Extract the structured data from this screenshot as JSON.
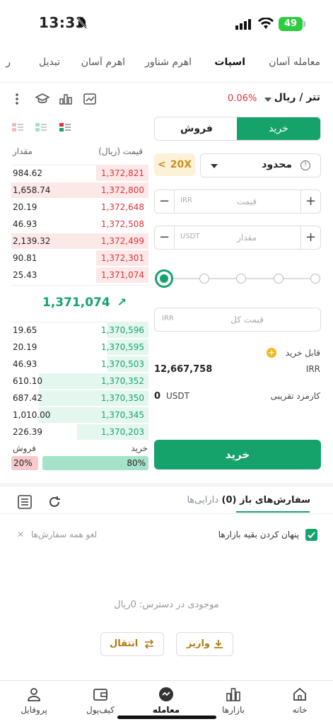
{
  "status": {
    "time": "13:33",
    "battery": "49"
  },
  "tabs": [
    "معامله آسان",
    "اسپات",
    "اهرم شناور",
    "اهرم آسان",
    "تبدیل",
    "ر"
  ],
  "pair": {
    "title": "تتر / ریال",
    "change": "0.06%"
  },
  "form": {
    "buy_label": "خرید",
    "sell_label": "فروش",
    "order_type": "محدود",
    "info_glyph": "!",
    "leverage": "20X",
    "leverage_arrow": "<",
    "price_placeholder": "قیمت",
    "price_unit": "IRR",
    "amount_placeholder": "مقدار",
    "amount_unit": "USDT",
    "plus": "+",
    "minus": "−",
    "total_placeholder": "قیمت کل",
    "total_unit": "IRR",
    "available_label": "قابل خرید",
    "add_glyph": "+",
    "available_value": "12,667,758",
    "available_unit": "IRR",
    "fee_label": "کارمزد تقریبی",
    "fee_value": "0",
    "fee_unit": "USDT",
    "submit_label": "خرید"
  },
  "orderbook": {
    "col_price": "قیمت (ریال)",
    "col_amount": "مقدار",
    "asks": [
      {
        "price": "1,372,821",
        "amount": "984.62",
        "depth": 0.38
      },
      {
        "price": "1,372,800",
        "amount": "1,658.74",
        "depth": 1.0
      },
      {
        "price": "1,372,648",
        "amount": "20.19",
        "depth": 0.0
      },
      {
        "price": "1,372,508",
        "amount": "46.93",
        "depth": 0.0
      },
      {
        "price": "1,372,499",
        "amount": "2,139.32",
        "depth": 1.0
      },
      {
        "price": "1,372,301",
        "amount": "90.81",
        "depth": 0.38
      },
      {
        "price": "1,371,074",
        "amount": "25.43",
        "depth": 0.38
      }
    ],
    "mid_price": "1,371,074",
    "mid_arrow": "↗",
    "bids": [
      {
        "price": "1,370,596",
        "amount": "19.65",
        "depth": 0.3
      },
      {
        "price": "1,370,595",
        "amount": "20.19",
        "depth": 0.3
      },
      {
        "price": "1,370,503",
        "amount": "46.93",
        "depth": 0.3
      },
      {
        "price": "1,370,352",
        "amount": "610.10",
        "depth": 0.8
      },
      {
        "price": "1,370,350",
        "amount": "687.42",
        "depth": 0.8
      },
      {
        "price": "1,370,345",
        "amount": "1,010.00",
        "depth": 0.8
      },
      {
        "price": "1,370,203",
        "amount": "226.39",
        "depth": 0.52
      }
    ],
    "ratio_buy_label": "خرید",
    "ratio_sell_label": "فروش",
    "ratio_buy": "80%",
    "ratio_sell": "20%"
  },
  "orders": {
    "tab_open": "سفارش‌های باز (0)",
    "tab_assets": "دارایی‌ها",
    "hide_label": "پنهان کردن بقیه بازارها",
    "cancel_all": "لغو همه سفارش‌ها",
    "close_glyph": "✕",
    "empty_text": "موجودی در دسترس: 0ریال",
    "deposit_label": "واریز",
    "transfer_label": "انتقال"
  },
  "nav": [
    "خانه",
    "بازارها",
    "معامله",
    "کیف‌پول",
    "پروفایل"
  ],
  "colors": {
    "accent": "#16a36b",
    "sell": "#e0333a",
    "leverage": "#c8901a"
  }
}
